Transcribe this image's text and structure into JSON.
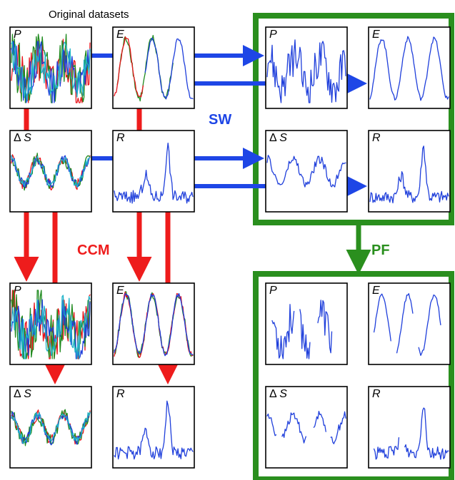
{
  "heading": "Original datasets",
  "tags": {
    "sw": "SW",
    "ccm": "CCM",
    "pf": "PF"
  },
  "colors": {
    "blue": "#1f3fdb",
    "red": "#e8141b",
    "green": "#1e8a1e",
    "cyan": "#1fb3c8",
    "frame_green": "#2a8f1e",
    "arrow_blue": "#1e46e6",
    "arrow_red": "#ee1c1c"
  },
  "panels": {
    "orig_p": {
      "label": "P"
    },
    "orig_e": {
      "label": "E"
    },
    "orig_ds": {
      "delta": "Δ",
      "label": "S"
    },
    "orig_r": {
      "label": "R"
    },
    "sw_p": {
      "label": "P"
    },
    "sw_e": {
      "label": "E"
    },
    "sw_ds": {
      "delta": "Δ",
      "label": "S"
    },
    "sw_r": {
      "label": "R"
    },
    "ccm_p": {
      "label": "P"
    },
    "ccm_e": {
      "label": "E"
    },
    "ccm_ds": {
      "delta": "Δ",
      "label": "S"
    },
    "ccm_r": {
      "label": "R"
    },
    "pf_p": {
      "label": "P"
    },
    "pf_e": {
      "label": "E"
    },
    "pf_ds": {
      "delta": "Δ",
      "label": "S"
    },
    "pf_r": {
      "label": "R"
    }
  }
}
